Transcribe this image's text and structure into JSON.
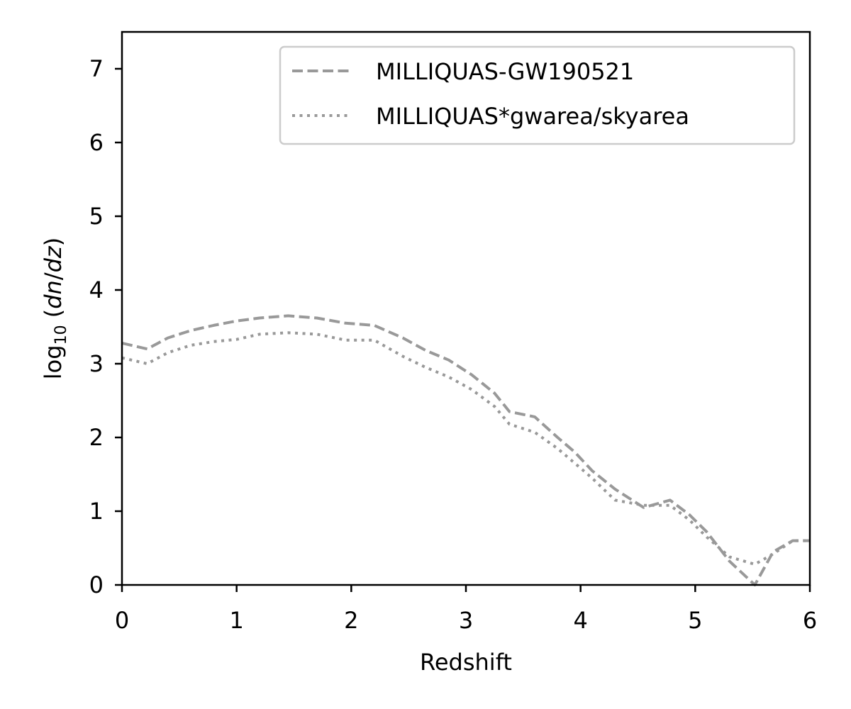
{
  "chart_data": {
    "type": "line",
    "title": "",
    "xlabel": "Redshift",
    "ylabel": {
      "prefix": "log",
      "subscript": "10",
      "open": " (",
      "italic": "dn",
      "slash": "/",
      "italic2": "dz",
      "close": ")"
    },
    "xlim": [
      0,
      6
    ],
    "ylim": [
      0,
      7.5
    ],
    "xticks": [
      "0",
      "1",
      "2",
      "3",
      "4",
      "5",
      "6"
    ],
    "yticks": [
      "0",
      "1",
      "2",
      "3",
      "4",
      "5",
      "6",
      "7"
    ],
    "grid": false,
    "legend_position": "top-right",
    "series": [
      {
        "name": "MILLIQUAS-GW190521",
        "style": "dashed",
        "color": "#999999",
        "x": [
          0.0,
          0.22,
          0.4,
          0.6,
          0.8,
          1.0,
          1.2,
          1.45,
          1.7,
          1.95,
          2.2,
          2.45,
          2.65,
          2.85,
          3.05,
          3.25,
          3.38,
          3.6,
          3.8,
          3.95,
          4.1,
          4.3,
          4.55,
          4.78,
          4.95,
          5.1,
          5.3,
          5.52,
          5.68,
          5.85,
          6.0
        ],
        "y": [
          3.28,
          3.2,
          3.35,
          3.45,
          3.52,
          3.58,
          3.62,
          3.65,
          3.62,
          3.55,
          3.52,
          3.35,
          3.18,
          3.05,
          2.85,
          2.6,
          2.35,
          2.28,
          2.0,
          1.8,
          1.55,
          1.3,
          1.05,
          1.15,
          0.95,
          0.72,
          0.32,
          0.0,
          0.45,
          0.6,
          0.6
        ]
      },
      {
        "name": "MILLIQUAS*gwarea/skyarea",
        "style": "dotted",
        "color": "#999999",
        "x": [
          0.0,
          0.22,
          0.4,
          0.6,
          0.8,
          1.0,
          1.2,
          1.45,
          1.7,
          1.95,
          2.2,
          2.45,
          2.65,
          2.85,
          3.05,
          3.25,
          3.38,
          3.6,
          3.8,
          3.95,
          4.1,
          4.3,
          4.55,
          4.78,
          4.95,
          5.1,
          5.3,
          5.52,
          5.68,
          5.85,
          6.0
        ],
        "y": [
          3.08,
          3.0,
          3.15,
          3.25,
          3.3,
          3.33,
          3.4,
          3.42,
          3.4,
          3.32,
          3.32,
          3.1,
          2.95,
          2.82,
          2.65,
          2.42,
          2.18,
          2.07,
          1.85,
          1.65,
          1.45,
          1.15,
          1.08,
          1.08,
          0.88,
          0.65,
          0.38,
          0.28,
          0.42,
          0.6,
          0.6
        ]
      }
    ]
  }
}
